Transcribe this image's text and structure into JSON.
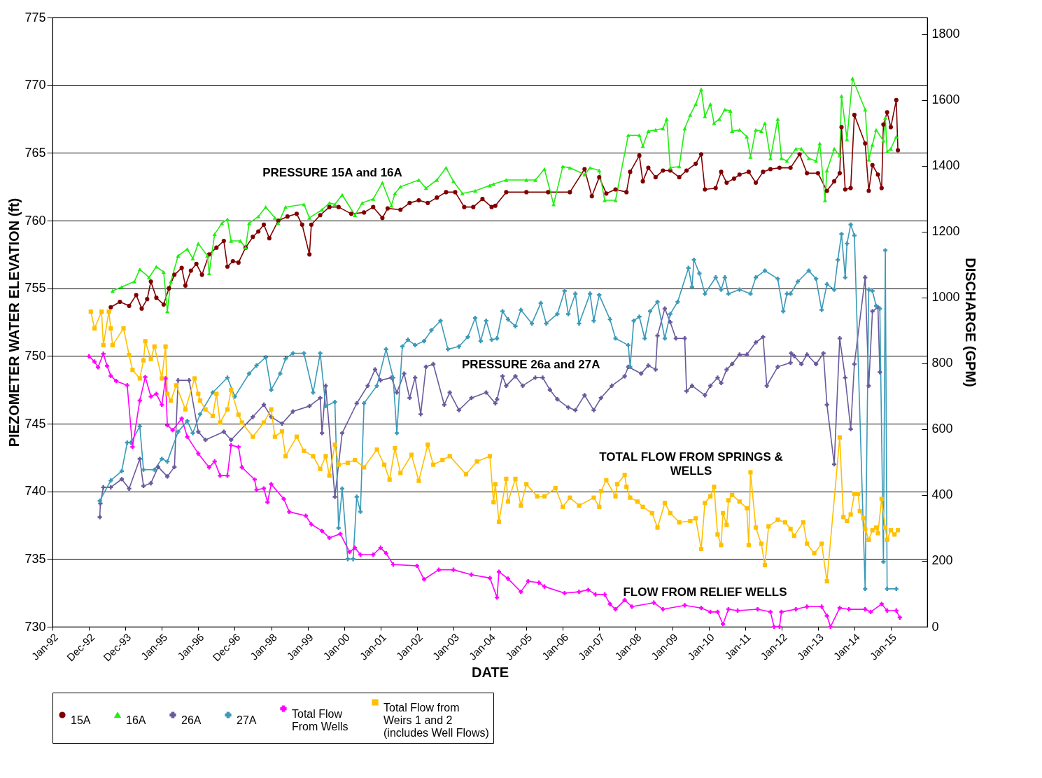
{
  "chart_data": {
    "type": "line",
    "xlabel": "DATE",
    "ylabel": "PIEZOMETER WATER ELEVATION (ft)",
    "y2label": "DISCHARGE (GPM)",
    "xlim": [
      "1992-01-01",
      "2016-01-01"
    ],
    "xticks": [
      {
        "value": "1992-01-01",
        "label": "Jan-92"
      },
      {
        "value": "1992-12-31",
        "label": "Dec-92"
      },
      {
        "value": "1993-12-31",
        "label": "Dec-93"
      },
      {
        "value": "1995-01-01",
        "label": "Jan-95"
      },
      {
        "value": "1996-01-01",
        "label": "Jan-96"
      },
      {
        "value": "1996-12-31",
        "label": "Dec-96"
      },
      {
        "value": "1998-01-01",
        "label": "Jan-98"
      },
      {
        "value": "1999-01-01",
        "label": "Jan-99"
      },
      {
        "value": "2000-01-01",
        "label": "Jan-00"
      },
      {
        "value": "2001-01-01",
        "label": "Jan-01"
      },
      {
        "value": "2002-01-01",
        "label": "Jan-02"
      },
      {
        "value": "2003-01-01",
        "label": "Jan-03"
      },
      {
        "value": "2004-01-01",
        "label": "Jan-04"
      },
      {
        "value": "2005-01-01",
        "label": "Jan-05"
      },
      {
        "value": "2006-01-01",
        "label": "Jan-06"
      },
      {
        "value": "2007-01-01",
        "label": "Jan-07"
      },
      {
        "value": "2008-01-01",
        "label": "Jan-08"
      },
      {
        "value": "2009-01-01",
        "label": "Jan-09"
      },
      {
        "value": "2010-01-01",
        "label": "Jan-10"
      },
      {
        "value": "2011-01-01",
        "label": "Jan-11"
      },
      {
        "value": "2012-01-01",
        "label": "Jan-12"
      },
      {
        "value": "2013-01-01",
        "label": "Jan-13"
      },
      {
        "value": "2014-01-01",
        "label": "Jan-14"
      },
      {
        "value": "2015-01-01",
        "label": "Jan-15"
      }
    ],
    "ylim": [
      730,
      775
    ],
    "yticks": [
      730,
      735,
      740,
      745,
      750,
      755,
      760,
      765,
      770,
      775
    ],
    "y2lim": [
      0,
      1850
    ],
    "y2ticks": [
      0,
      200,
      400,
      600,
      800,
      1000,
      1200,
      1400,
      1600,
      1800
    ],
    "grid": "y",
    "legend": "bottom",
    "annotations": [
      "PRESSURE 15A and 16A",
      "PRESSURE 26a and 27A",
      "TOTAL FLOW FROM SPRINGS &\nWELLS",
      "FLOW FROM RELIEF WELLS"
    ],
    "series": [
      {
        "name": "15A",
        "color": "#800000",
        "marker": "circle",
        "x": [
          "1993-08-07",
          "1993-11-07",
          "1994-02-07",
          "1994-04-19",
          "1994-06-13",
          "1994-08-07",
          "1994-09-13",
          "1994-11-07",
          "1995-01-19",
          "1995-03-13",
          "1995-05-07",
          "1995-07-19",
          "1995-08-25",
          "1995-10-19",
          "1995-12-13",
          "1996-02-07",
          "1996-04-19",
          "1996-07-01",
          "1996-09-13",
          "1996-10-19",
          "1996-12-13",
          "1997-02-07",
          "1997-04-19",
          "1997-07-01",
          "1997-08-25",
          "1997-10-19",
          "1997-12-13",
          "1998-03-13",
          "1998-06-13",
          "1998-09-13",
          "1998-11-07",
          "1999-01-19",
          "1999-02-07",
          "1999-05-07",
          "1999-08-07",
          "1999-11-07",
          "2000-03-13",
          "2000-07-19",
          "2000-10-19",
          "2001-01-19",
          "2001-03-13",
          "2001-07-19",
          "2001-10-19",
          "2002-01-19",
          "2002-04-19",
          "2002-07-19",
          "2002-10-19",
          "2003-01-19",
          "2003-04-19",
          "2003-07-19",
          "2003-10-19",
          "2004-01-19",
          "2004-02-25",
          "2004-06-13",
          "2005-01-01",
          "2005-08-07",
          "2006-03-13",
          "2006-08-07",
          "2006-10-19",
          "2007-01-01",
          "2007-03-13",
          "2007-06-13",
          "2007-10-01",
          "2007-11-07",
          "2008-02-07",
          "2008-03-13",
          "2008-05-07",
          "2008-07-19",
          "2008-10-01",
          "2008-12-13",
          "2009-03-13",
          "2009-05-25",
          "2009-08-25",
          "2009-10-19",
          "2009-11-25",
          "2010-03-13",
          "2010-05-07",
          "2010-07-01",
          "2010-09-13",
          "2010-11-07",
          "2011-02-07",
          "2011-04-19",
          "2011-07-01",
          "2011-09-13",
          "2011-12-13",
          "2012-04-01",
          "2012-07-01",
          "2012-09-13",
          "2013-01-01",
          "2013-04-01",
          "2013-06-13",
          "2013-08-07",
          "2013-08-25",
          "2013-10-01",
          "2013-11-25",
          "2014-01-01",
          "2014-04-19",
          "2014-05-25",
          "2014-07-01",
          "2014-08-25",
          "2014-10-01",
          "2014-10-19",
          "2014-11-25",
          "2015-01-01",
          "2015-02-25",
          "2015-03-13"
        ],
        "values": [
          753.6,
          754.0,
          753.7,
          754.5,
          753.5,
          754.2,
          755.5,
          754.3,
          753.8,
          755.0,
          756.0,
          756.5,
          755.2,
          756.3,
          756.8,
          756.0,
          757.5,
          758.0,
          758.5,
          756.6,
          757.0,
          756.9,
          758.0,
          758.8,
          759.2,
          759.7,
          758.7,
          760.0,
          760.3,
          760.5,
          759.7,
          757.5,
          759.7,
          760.4,
          761.0,
          761.0,
          760.5,
          760.6,
          761.0,
          760.2,
          760.9,
          760.8,
          761.3,
          761.5,
          761.3,
          761.7,
          762.1,
          762.1,
          761.0,
          761.0,
          761.6,
          761.0,
          761.1,
          762.1,
          762.1,
          762.1,
          762.1,
          763.8,
          761.8,
          763.2,
          762.0,
          762.3,
          762.1,
          763.6,
          764.8,
          762.9,
          763.9,
          763.2,
          763.7,
          763.7,
          763.2,
          763.7,
          764.2,
          764.9,
          762.3,
          762.4,
          763.6,
          762.8,
          763.1,
          763.4,
          763.6,
          762.8,
          763.6,
          763.8,
          763.9,
          763.9,
          764.9,
          763.5,
          763.5,
          762.2,
          762.9,
          763.5,
          766.9,
          762.3,
          762.4,
          767.8,
          765.7,
          762.2,
          764.1,
          763.4,
          762.4,
          767.1,
          768.0,
          766.9,
          768.9,
          765.2
        ]
      },
      {
        "name": "16A",
        "color": "#22ee11",
        "marker": "triangle",
        "x": [
          "1993-08-25",
          "1993-11-25",
          "1994-04-01",
          "1994-05-25",
          "1994-08-25",
          "1994-11-07",
          "1995-01-19",
          "1995-02-25",
          "1995-04-01",
          "1995-06-13",
          "1995-09-13",
          "1995-11-07",
          "1996-01-01",
          "1996-04-01",
          "1996-04-19",
          "1996-06-13",
          "1996-08-25",
          "1996-10-19",
          "1996-11-25",
          "1997-02-25",
          "1997-04-19",
          "1997-05-25",
          "1997-08-25",
          "1997-11-07",
          "1998-02-07",
          "1998-03-13",
          "1998-05-25",
          "1998-11-25",
          "1999-01-19",
          "1999-05-25",
          "1999-08-07",
          "1999-10-01",
          "1999-12-13",
          "2000-04-19",
          "2000-07-01",
          "2000-10-19",
          "2001-01-19",
          "2001-04-19",
          "2001-05-25",
          "2001-07-19",
          "2002-01-19",
          "2002-04-01",
          "2002-07-19",
          "2002-10-19",
          "2003-01-01",
          "2003-04-01",
          "2003-08-07",
          "2004-01-01",
          "2004-02-07",
          "2004-06-13",
          "2005-01-01",
          "2005-04-01",
          "2005-07-01",
          "2005-10-01",
          "2006-01-01",
          "2006-03-13",
          "2006-08-07",
          "2006-10-01",
          "2007-01-01",
          "2007-02-25",
          "2007-06-13",
          "2007-10-19",
          "2008-02-07",
          "2008-03-13",
          "2008-05-07",
          "2008-07-19",
          "2008-10-01",
          "2008-11-07",
          "2008-12-13",
          "2009-03-13",
          "2009-05-07",
          "2009-07-01",
          "2009-08-25",
          "2009-10-19",
          "2009-11-25",
          "2010-01-19",
          "2010-02-25",
          "2010-04-19",
          "2010-06-13",
          "2010-08-07",
          "2010-08-25",
          "2010-11-07",
          "2011-01-19",
          "2011-02-25",
          "2011-04-19",
          "2011-06-13",
          "2011-07-19",
          "2011-09-13",
          "2011-11-25",
          "2012-01-01",
          "2012-02-25",
          "2012-05-25",
          "2012-07-19",
          "2012-10-01",
          "2012-12-13",
          "2013-01-19",
          "2013-03-13",
          "2013-04-01",
          "2013-06-13",
          "2013-08-07",
          "2013-08-25",
          "2013-10-19",
          "2013-12-13",
          "2014-04-19",
          "2014-05-25",
          "2014-07-01",
          "2014-08-07",
          "2014-10-19",
          "2014-11-07",
          "2014-11-25",
          "2015-01-01",
          "2015-02-25"
        ],
        "values": [
          754.8,
          755.1,
          755.5,
          756.4,
          755.8,
          756.6,
          756.2,
          753.3,
          755.5,
          757.4,
          757.9,
          757.2,
          758.3,
          757.4,
          756.1,
          759.0,
          759.8,
          760.1,
          758.5,
          758.5,
          758.0,
          759.8,
          760.3,
          761.0,
          760.2,
          759.8,
          761.0,
          761.2,
          760.2,
          760.8,
          761.3,
          761.2,
          761.9,
          760.4,
          761.3,
          761.6,
          762.8,
          761.1,
          762.0,
          762.5,
          763.0,
          762.4,
          763.0,
          763.9,
          762.9,
          762.0,
          762.2,
          762.6,
          762.7,
          763.0,
          763.0,
          763.0,
          763.8,
          761.2,
          764.0,
          763.9,
          763.4,
          763.9,
          763.7,
          761.5,
          761.5,
          766.3,
          766.3,
          765.5,
          766.6,
          766.7,
          766.8,
          767.5,
          763.9,
          764.0,
          766.8,
          767.8,
          768.6,
          769.7,
          767.7,
          768.6,
          767.2,
          767.5,
          768.2,
          768.1,
          766.6,
          766.7,
          766.2,
          764.7,
          766.7,
          766.6,
          767.2,
          764.6,
          767.5,
          764.6,
          764.4,
          765.3,
          765.3,
          764.6,
          764.4,
          765.7,
          761.5,
          763.7,
          765.3,
          764.8,
          769.2,
          766.0,
          770.5,
          768.2,
          764.5,
          765.6,
          766.7,
          765.9,
          767.6,
          765.1,
          765.3,
          766.2
        ]
      },
      {
        "name": "26A",
        "color": "#6a5a9c",
        "marker": "cross",
        "x": [
          "1993-04-19",
          "1993-04-25",
          "1993-05-25",
          "1993-08-07",
          "1993-11-25",
          "1994-02-07",
          "1994-05-25",
          "1994-07-01",
          "1994-09-13",
          "1994-11-25",
          "1995-02-25",
          "1995-05-07",
          "1995-06-13",
          "1995-10-01",
          "1996-01-01",
          "1996-03-13",
          "1996-09-13",
          "1996-11-25",
          "1997-07-01",
          "1997-10-19",
          "1998-01-01",
          "1998-04-19",
          "1998-08-07",
          "1999-01-19",
          "1999-05-07",
          "1999-05-25",
          "1999-07-01",
          "1999-10-01",
          "1999-12-13",
          "2000-05-07",
          "2000-08-25",
          "2000-11-07",
          "2001-01-01",
          "2001-04-19",
          "2001-06-13",
          "2001-08-25",
          "2001-10-19",
          "2001-12-13",
          "2002-02-07",
          "2002-04-01",
          "2002-06-13",
          "2002-10-01",
          "2002-11-25",
          "2003-02-25",
          "2003-07-01",
          "2003-11-25",
          "2004-02-25",
          "2004-03-13",
          "2004-05-07",
          "2004-06-13",
          "2004-09-13",
          "2004-11-25",
          "2005-04-01",
          "2005-06-13",
          "2005-08-25",
          "2005-11-07",
          "2006-02-25",
          "2006-05-07",
          "2006-08-07",
          "2006-11-07",
          "2007-01-19",
          "2007-05-07",
          "2007-09-13",
          "2007-10-19",
          "2008-02-25",
          "2008-05-07",
          "2008-07-19",
          "2008-08-07",
          "2008-10-19",
          "2008-12-13",
          "2009-02-07",
          "2009-05-07",
          "2009-05-25",
          "2009-07-19",
          "2009-11-25",
          "2010-01-19",
          "2010-04-01",
          "2010-05-07",
          "2010-07-01",
          "2010-08-25",
          "2010-11-07",
          "2011-01-19",
          "2011-04-19",
          "2011-07-01",
          "2011-08-07",
          "2011-11-25",
          "2012-04-01",
          "2012-04-07",
          "2012-05-07",
          "2012-07-19",
          "2012-09-13",
          "2012-12-13",
          "2013-02-25",
          "2013-04-01",
          "2013-06-13",
          "2013-08-07",
          "2013-10-01",
          "2013-11-25",
          "2014-01-01",
          "2014-04-19",
          "2014-05-25",
          "2014-07-01",
          "2014-08-25",
          "2014-09-13"
        ],
        "values": [
          738.1,
          739.1,
          740.3,
          740.3,
          740.9,
          740.2,
          742.4,
          740.4,
          740.6,
          741.8,
          741.1,
          741.8,
          748.2,
          748.2,
          744.4,
          743.8,
          744.4,
          743.8,
          745.5,
          746.4,
          745.5,
          745.0,
          745.9,
          746.3,
          746.9,
          744.3,
          747.8,
          739.6,
          744.3,
          746.5,
          747.8,
          749.0,
          748.2,
          748.4,
          747.3,
          748.7,
          746.9,
          748.4,
          745.7,
          749.2,
          749.4,
          746.4,
          747.3,
          746.0,
          746.9,
          747.3,
          746.5,
          746.8,
          748.5,
          747.8,
          748.5,
          747.8,
          748.4,
          748.4,
          747.5,
          746.8,
          746.2,
          746.0,
          747.1,
          746.0,
          746.9,
          747.8,
          748.5,
          749.2,
          748.7,
          749.3,
          749.0,
          751.5,
          753.5,
          752.5,
          751.3,
          751.3,
          747.4,
          747.8,
          747.1,
          747.8,
          748.4,
          748.0,
          749.0,
          749.4,
          750.1,
          750.1,
          751.0,
          751.4,
          747.8,
          749.2,
          749.5,
          750.2,
          750.0,
          749.4,
          750.1,
          749.4,
          750.2,
          746.4,
          742.0,
          751.3,
          748.4,
          744.6,
          749.4,
          755.8,
          747.8,
          753.3,
          753.6,
          748.8
        ]
      },
      {
        "name": "27A",
        "color": "#3a9ab8",
        "marker": "cross",
        "x": [
          "1993-04-19",
          "1993-08-07",
          "1993-11-25",
          "1994-01-19",
          "1994-02-25",
          "1994-05-25",
          "1994-07-01",
          "1994-10-19",
          "1995-01-01",
          "1995-02-25",
          "1995-06-13",
          "1995-09-13",
          "1995-11-07",
          "1996-01-19",
          "1996-05-25",
          "1996-10-19",
          "1997-01-01",
          "1997-05-25",
          "1997-08-07",
          "1997-11-07",
          "1998-01-01",
          "1998-04-01",
          "1998-05-25",
          "1998-08-07",
          "1998-11-25",
          "1999-02-25",
          "1999-05-07",
          "1999-07-01",
          "1999-10-01",
          "1999-11-07",
          "1999-12-13",
          "2000-02-07",
          "2000-04-01",
          "2000-05-07",
          "2000-06-13",
          "2000-07-19",
          "2000-11-25",
          "2001-02-25",
          "2001-05-07",
          "2001-06-13",
          "2001-08-07",
          "2001-10-01",
          "2001-12-13",
          "2002-03-13",
          "2002-05-25",
          "2002-08-25",
          "2002-11-07",
          "2003-02-25",
          "2003-05-25",
          "2003-08-07",
          "2003-10-01",
          "2003-11-25",
          "2004-01-19",
          "2004-03-13",
          "2004-05-07",
          "2004-07-01",
          "2004-09-13",
          "2004-11-07",
          "2005-02-25",
          "2005-05-25",
          "2005-07-19",
          "2005-11-07",
          "2006-01-19",
          "2006-02-25",
          "2006-05-07",
          "2006-06-13",
          "2006-10-01",
          "2006-11-07",
          "2007-01-01",
          "2007-04-19",
          "2007-06-13",
          "2007-10-19",
          "2007-11-07",
          "2007-12-13",
          "2008-02-07",
          "2008-04-01",
          "2008-05-25",
          "2008-08-07",
          "2008-10-19",
          "2008-12-13",
          "2009-02-25",
          "2009-06-13",
          "2009-07-19",
          "2009-08-07",
          "2009-10-01",
          "2009-11-25",
          "2010-03-13",
          "2010-05-07",
          "2010-06-13",
          "2010-07-19",
          "2010-11-07",
          "2011-02-25",
          "2011-04-19",
          "2011-07-19",
          "2011-11-25",
          "2012-01-19",
          "2012-02-25",
          "2012-04-01",
          "2012-06-13",
          "2012-10-01",
          "2012-12-13",
          "2013-02-07",
          "2013-04-01",
          "2013-06-13",
          "2013-07-19",
          "2013-08-25",
          "2013-10-01",
          "2013-10-19",
          "2013-11-25",
          "2014-01-01",
          "2014-04-19",
          "2014-05-25",
          "2014-07-01",
          "2014-08-07",
          "2014-09-13",
          "2014-10-19",
          "2014-11-07",
          "2014-11-25",
          "2015-02-25"
        ],
        "values": [
          739.3,
          740.8,
          741.5,
          743.6,
          743.6,
          744.8,
          741.6,
          741.6,
          742.4,
          742.2,
          744.4,
          745.2,
          744.3,
          745.7,
          747.3,
          748.4,
          747.0,
          748.7,
          749.3,
          749.9,
          747.5,
          748.7,
          749.8,
          750.2,
          750.2,
          747.3,
          750.2,
          746.3,
          746.6,
          737.3,
          740.2,
          735.0,
          735.0,
          739.6,
          738.5,
          746.5,
          747.8,
          750.5,
          748.4,
          744.3,
          750.7,
          751.2,
          750.8,
          751.1,
          751.9,
          752.6,
          750.5,
          750.7,
          751.4,
          752.8,
          751.1,
          752.6,
          751.2,
          751.3,
          753.3,
          752.7,
          752.2,
          753.4,
          752.4,
          753.9,
          752.4,
          753.1,
          754.8,
          753.1,
          754.6,
          752.4,
          754.6,
          752.6,
          754.5,
          752.7,
          751.3,
          750.8,
          749.2,
          752.6,
          752.9,
          751.3,
          753.3,
          754.0,
          751.3,
          753.1,
          754.0,
          756.5,
          755.1,
          757.1,
          756.1,
          754.6,
          755.8,
          754.9,
          755.8,
          754.6,
          754.9,
          754.6,
          755.8,
          756.3,
          755.7,
          753.3,
          754.6,
          754.6,
          755.5,
          756.3,
          755.7,
          753.4,
          755.3,
          754.9,
          757.1,
          759.0,
          755.8,
          758.3,
          759.7,
          758.9,
          732.8,
          754.9,
          754.8,
          753.7,
          753.5,
          734.8,
          757.8,
          732.8,
          732.8
        ]
      },
      {
        "name": "Total Flow\nFrom Wells",
        "color": "#ff00ff",
        "marker": "cross",
        "axis": "y2",
        "x": [
          "1993-01-01",
          "1993-02-25",
          "1993-04-01",
          "1993-05-25",
          "1993-07-01",
          "1993-08-07",
          "1993-10-01",
          "1994-01-19",
          "1994-03-13",
          "1994-05-25",
          "1994-07-19",
          "1994-09-13",
          "1994-11-07",
          "1995-01-01",
          "1995-02-07",
          "1995-02-25",
          "1995-04-19",
          "1995-07-19",
          "1995-09-13",
          "1996-01-01",
          "1996-04-19",
          "1996-06-13",
          "1996-08-07",
          "1996-10-19",
          "1996-11-25",
          "1997-02-07",
          "1997-03-13",
          "1997-07-19",
          "1997-08-07",
          "1997-10-19",
          "1997-11-25",
          "1998-01-01",
          "1998-05-07",
          "1998-07-01",
          "1998-12-13",
          "1999-02-07",
          "1999-05-25",
          "1999-08-07",
          "1999-11-25",
          "2000-02-25",
          "2000-04-19",
          "2000-06-13",
          "2000-10-19",
          "2001-01-01",
          "2001-02-25",
          "2001-05-07",
          "2002-01-01",
          "2002-03-13",
          "2002-08-07",
          "2003-01-01",
          "2003-07-01",
          "2004-01-01",
          "2004-03-13",
          "2004-04-01",
          "2004-07-01",
          "2004-11-07",
          "2005-01-19",
          "2005-05-07",
          "2005-07-01",
          "2006-01-19",
          "2006-06-13",
          "2006-09-13",
          "2006-11-25",
          "2007-02-25",
          "2007-04-19",
          "2007-06-13",
          "2007-09-13",
          "2007-11-25",
          "2008-07-01",
          "2008-10-01",
          "2009-05-07",
          "2009-10-19",
          "2010-01-19",
          "2010-04-01",
          "2010-05-25",
          "2010-07-19",
          "2010-10-19",
          "2011-05-07",
          "2011-09-13",
          "2011-10-19",
          "2011-12-13",
          "2012-01-01",
          "2012-05-25",
          "2012-09-13",
          "2013-02-07",
          "2013-04-01",
          "2013-05-07",
          "2013-08-07",
          "2013-11-07",
          "2014-04-19",
          "2014-06-13",
          "2014-10-01",
          "2014-11-25",
          "2015-02-25",
          "2015-04-01"
        ],
        "values": [
          821,
          805,
          788,
          829,
          792,
          762,
          746,
          733,
          546,
          687,
          758,
          699,
          707,
          674,
          754,
          612,
          597,
          632,
          577,
          526,
          484,
          502,
          459,
          459,
          551,
          546,
          484,
          447,
          416,
          420,
          378,
          433,
          388,
          349,
          337,
          311,
          291,
          270,
          282,
          227,
          240,
          219,
          219,
          240,
          223,
          189,
          185,
          144,
          173,
          173,
          158,
          148,
          89,
          167,
          146,
          106,
          138,
          134,
          122,
          102,
          106,
          112,
          98,
          98,
          69,
          53,
          81,
          61,
          73,
          53,
          65,
          57,
          45,
          45,
          8,
          53,
          49,
          53,
          45,
          0,
          0,
          45,
          53,
          61,
          61,
          33,
          0,
          57,
          53,
          53,
          45,
          69,
          49,
          49,
          28
        ]
      },
      {
        "name": "Total Flow from\nWeirs 1 and 2\n(includes Well Flows)",
        "color": "#ffc000",
        "marker": "square",
        "axis": "y2",
        "x": [
          "1993-01-19",
          "1993-02-25",
          "1993-05-07",
          "1993-05-25",
          "1993-07-19",
          "1993-08-07",
          "1993-08-25",
          "1993-12-13",
          "1994-02-07",
          "1994-03-13",
          "1994-05-25",
          "1994-07-01",
          "1994-07-19",
          "1994-09-13",
          "1994-10-19",
          "1995-01-01",
          "1995-02-07",
          "1995-02-25",
          "1995-04-01",
          "1995-05-25",
          "1995-08-25",
          "1995-11-25",
          "1996-01-01",
          "1996-01-19",
          "1996-03-13",
          "1996-05-25",
          "1996-07-01",
          "1996-08-07",
          "1996-10-19",
          "1996-11-25",
          "1997-02-07",
          "1997-03-13",
          "1997-07-01",
          "1997-10-19",
          "1998-01-01",
          "1998-02-07",
          "1998-04-19",
          "1998-05-25",
          "1998-09-13",
          "1998-11-25",
          "1999-02-25",
          "1999-05-07",
          "1999-07-01",
          "1999-08-07",
          "1999-10-01",
          "1999-11-07",
          "2000-02-07",
          "2000-04-19",
          "2000-07-19",
          "2000-11-25",
          "2001-02-07",
          "2001-04-01",
          "2001-05-25",
          "2001-07-19",
          "2001-11-07",
          "2002-01-19",
          "2002-04-19",
          "2002-06-13",
          "2002-09-13",
          "2002-11-25",
          "2003-05-07",
          "2003-08-25",
          "2004-01-01",
          "2004-02-07",
          "2004-02-25",
          "2004-04-01",
          "2004-06-13",
          "2004-07-01",
          "2004-09-13",
          "2004-11-07",
          "2005-01-01",
          "2005-04-19",
          "2005-07-01",
          "2005-10-19",
          "2006-01-01",
          "2006-03-13",
          "2006-06-13",
          "2006-11-07",
          "2007-01-01",
          "2007-01-19",
          "2007-03-13",
          "2007-06-13",
          "2007-07-01",
          "2007-09-13",
          "2007-10-01",
          "2007-11-07",
          "2008-01-19",
          "2008-03-13",
          "2008-06-13",
          "2008-08-07",
          "2008-10-19",
          "2008-12-13",
          "2009-03-13",
          "2009-07-01",
          "2009-08-25",
          "2009-10-19",
          "2009-11-25",
          "2010-01-19",
          "2010-02-25",
          "2010-04-01",
          "2010-05-07",
          "2010-05-25",
          "2010-07-01",
          "2010-07-19",
          "2010-08-25",
          "2010-11-07",
          "2011-01-19",
          "2011-02-07",
          "2011-02-25",
          "2011-04-19",
          "2011-06-13",
          "2011-07-19",
          "2011-08-25",
          "2011-11-25",
          "2012-02-07",
          "2012-04-01",
          "2012-05-07",
          "2012-08-07",
          "2012-09-13",
          "2012-11-25",
          "2013-02-07",
          "2013-04-01",
          "2013-08-07",
          "2013-09-13",
          "2013-10-19",
          "2013-11-25",
          "2014-01-01",
          "2014-02-07",
          "2014-02-25",
          "2014-04-01",
          "2014-04-19",
          "2014-05-25",
          "2014-07-01",
          "2014-08-07",
          "2014-08-25",
          "2014-10-01",
          "2014-11-07",
          "2014-11-25",
          "2015-01-01",
          "2015-02-07",
          "2015-03-13"
        ],
        "values": [
          957,
          906,
          957,
          855,
          957,
          906,
          855,
          906,
          825,
          780,
          754,
          809,
          867,
          813,
          851,
          754,
          851,
          707,
          687,
          733,
          660,
          754,
          707,
          687,
          660,
          640,
          707,
          620,
          660,
          719,
          644,
          620,
          577,
          620,
          660,
          577,
          593,
          518,
          577,
          534,
          518,
          479,
          518,
          459,
          553,
          492,
          498,
          506,
          484,
          538,
          492,
          447,
          542,
          467,
          522,
          443,
          553,
          492,
          506,
          518,
          463,
          502,
          518,
          378,
          433,
          319,
          449,
          380,
          449,
          368,
          433,
          396,
          396,
          421,
          364,
          392,
          368,
          392,
          364,
          412,
          445,
          396,
          433,
          461,
          425,
          392,
          380,
          364,
          345,
          301,
          376,
          345,
          317,
          321,
          329,
          236,
          376,
          396,
          425,
          280,
          248,
          345,
          309,
          384,
          400,
          380,
          360,
          248,
          469,
          301,
          252,
          187,
          305,
          325,
          317,
          297,
          276,
          317,
          252,
          223,
          252,
          138,
          575,
          333,
          321,
          341,
          404,
          404,
          351,
          329,
          297,
          264,
          293,
          301,
          284,
          388,
          301,
          264,
          293,
          280,
          293
        ]
      }
    ]
  }
}
